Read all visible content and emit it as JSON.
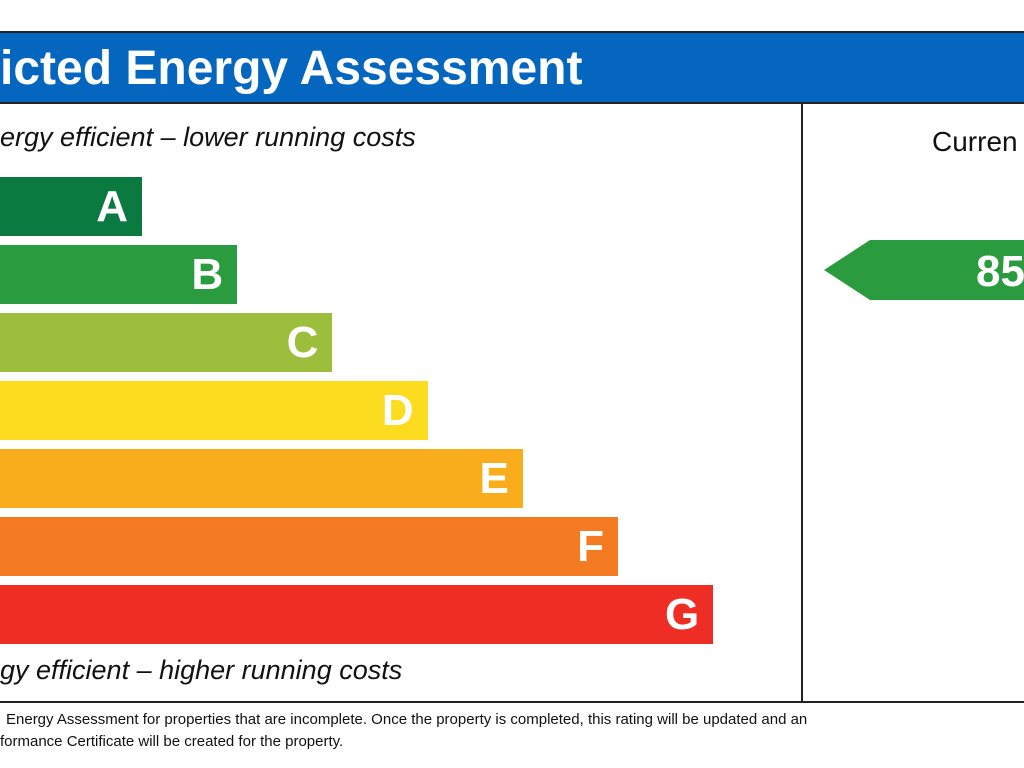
{
  "header": {
    "title": "icted Energy Assessment"
  },
  "notes": {
    "top": "ergy efficient – lower running costs",
    "bottom": "gy efficient – higher running costs"
  },
  "current_label": "Curren",
  "footer": {
    "line1": "Energy Assessment for properties that are incomplete. Once the property is completed, this rating will be updated and an",
    "line2": "formance Certificate will be created for the property."
  },
  "chart_data": {
    "type": "bar",
    "categories": [
      "A",
      "B",
      "C",
      "D",
      "E",
      "F",
      "G"
    ],
    "colors": [
      "#0b7a40",
      "#2a9b3f",
      "#9dbd3c",
      "#fcdc1f",
      "#f9ad1c",
      "#f47b21",
      "#ee2e25"
    ],
    "current": {
      "value": "85",
      "band": "B",
      "color": "#2a9b3f"
    }
  }
}
